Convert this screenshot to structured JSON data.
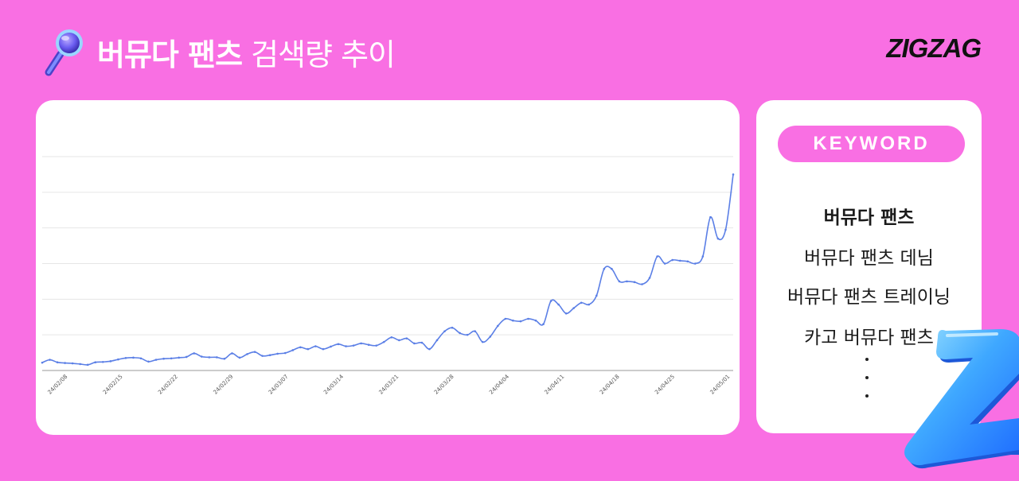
{
  "header": {
    "title_bold": "버뮤다 팬츠",
    "title_rest": " 검색량 추이",
    "logo_text": "ZIGZAG",
    "icon": "magnifier-icon"
  },
  "keyword_panel": {
    "label": "KEYWORD",
    "items": [
      "버뮤다 팬츠",
      "버뮤다 팬츠 데님",
      "버뮤다 팬츠 트레이닝",
      "카고 버뮤다 팬츠"
    ],
    "ellipsis": [
      "·",
      "·",
      "·"
    ]
  },
  "colors": {
    "background": "#f96fe3",
    "line": "#5b7fe6",
    "accent": "#f96fe3"
  },
  "decoration": "3d-z-letter",
  "chart_data": {
    "type": "line",
    "title": "",
    "xlabel": "",
    "ylabel": "",
    "grid": true,
    "ylim": [
      0,
      60
    ],
    "xticks": [
      "24/02/08",
      "24/02/15",
      "24/02/22",
      "24/02/29",
      "24/03/07",
      "24/03/14",
      "24/03/21",
      "24/03/28",
      "24/04/04",
      "24/04/11",
      "24/04/18",
      "24/04/25",
      "24/05/01"
    ],
    "series": [
      {
        "values": [
          2.2,
          3.0,
          2.3,
          2.1,
          2.0,
          1.8,
          1.6,
          2.3,
          2.4,
          2.6,
          3.1,
          3.5,
          3.6,
          3.4,
          2.5,
          3.0,
          3.3,
          3.4,
          3.6,
          3.8,
          4.8,
          3.9,
          3.7,
          3.7,
          3.3,
          4.8,
          3.6,
          4.6,
          5.2,
          4.1,
          4.3,
          4.7,
          4.9,
          5.7,
          6.5,
          6.0,
          6.8,
          6.0,
          6.7,
          7.4,
          6.8,
          7.0,
          7.6,
          7.2,
          7.0,
          8.0,
          9.3,
          8.5,
          9.0,
          7.6,
          7.8,
          6.0,
          8.5,
          11.0,
          12.0,
          10.5,
          10.0,
          11.0,
          8.0,
          9.5,
          12.5,
          14.5,
          14.0,
          13.8,
          14.5,
          14.0,
          13.0,
          19.5,
          18.5,
          16.0,
          17.5,
          19.0,
          18.5,
          21.0,
          28.5,
          28.5,
          25.0,
          25.0,
          24.8,
          24.2,
          26.0,
          32.0,
          30.0,
          31.0,
          30.8,
          30.6,
          30.0,
          32.0,
          43.0,
          37.0,
          39.5,
          55.0
        ]
      }
    ]
  }
}
